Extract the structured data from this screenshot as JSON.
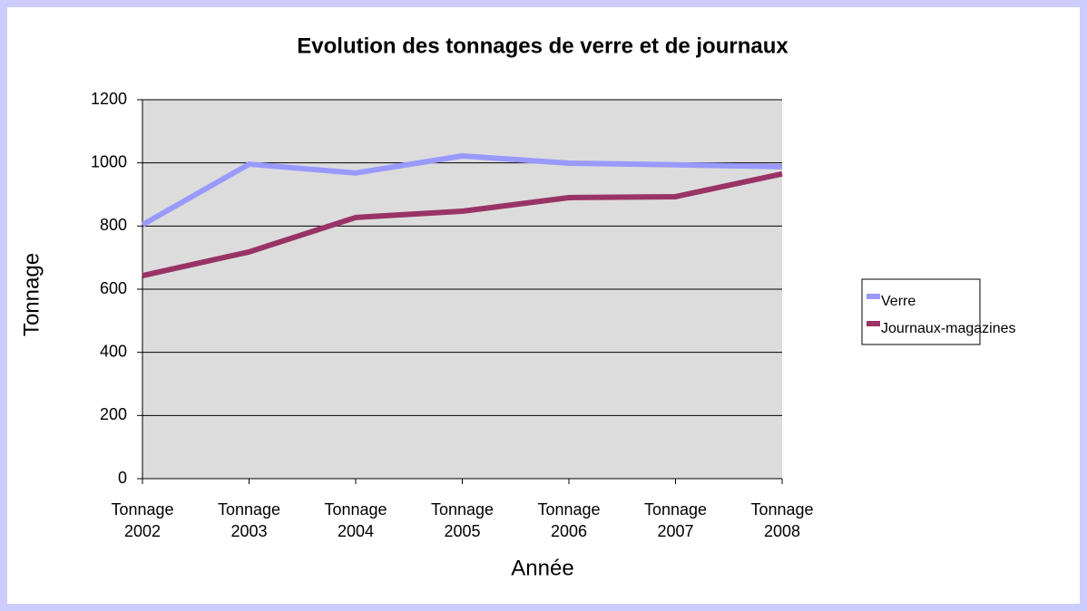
{
  "chart_data": {
    "type": "line",
    "title": "Evolution des tonnages de verre et de journaux",
    "x_label": "Année",
    "y_label": "Tonnage",
    "categories": [
      "Tonnage 2002",
      "Tonnage 2003",
      "Tonnage 2004",
      "Tonnage 2005",
      "Tonnage 2006",
      "Tonnage 2007",
      "Tonnage 2008"
    ],
    "series": [
      {
        "name": "Verre",
        "color": "#9999ff",
        "values": [
          804,
          996,
          968,
          1022,
          999,
          994,
          988
        ]
      },
      {
        "name": "Journaux-magazines",
        "color": "#993366",
        "values": [
          643,
          718,
          827,
          847,
          890,
          893,
          965
        ]
      }
    ],
    "ylim": [
      0,
      1200
    ],
    "yticks": [
      0,
      200,
      400,
      600,
      800,
      1000,
      1200
    ],
    "grid": true,
    "legend": "right"
  }
}
